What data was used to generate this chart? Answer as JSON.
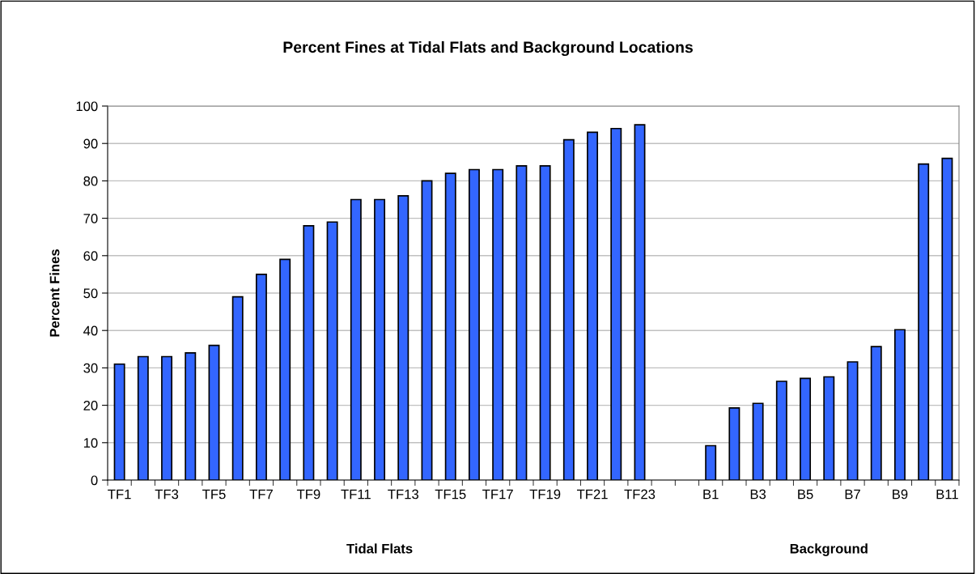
{
  "chart_data": {
    "type": "bar",
    "title": "Percent Fines at Tidal Flats and Background Locations",
    "ylabel": "Percent Fines",
    "annotations": [
      "Tidal Flats",
      "Background"
    ],
    "categories": [
      "TF1",
      null,
      "TF3",
      null,
      "TF5",
      null,
      "TF7",
      null,
      "TF9",
      null,
      "TF11",
      null,
      "TF13",
      null,
      "TF15",
      null,
      "TF17",
      null,
      "TF19",
      null,
      "TF21",
      null,
      "TF23",
      null,
      null,
      "B1",
      null,
      "B3",
      null,
      "B5",
      null,
      "B7",
      null,
      "B9",
      null,
      "B11"
    ],
    "values": [
      31,
      33,
      33,
      34,
      36,
      49,
      55,
      59,
      68,
      69,
      75,
      75,
      76,
      80,
      82,
      83,
      83,
      84,
      84,
      91,
      93,
      94,
      95,
      null,
      null,
      9.2,
      19.3,
      20.5,
      26.4,
      27.2,
      27.6,
      31.6,
      35.7,
      40.2,
      84.5,
      86.0
    ],
    "color": "#3366ff",
    "ylim": [
      0,
      100
    ],
    "yticks": [
      0,
      10,
      20,
      30,
      40,
      50,
      60,
      70,
      80,
      90,
      100
    ],
    "grid": "y",
    "legend": false
  }
}
